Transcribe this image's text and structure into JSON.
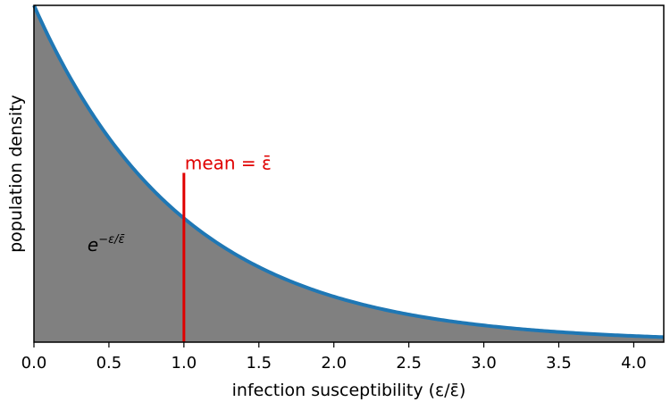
{
  "chart_data": {
    "type": "area",
    "title": "",
    "xlabel": "infection susceptibility (ε/ε̄)",
    "ylabel": "population density",
    "xlim": [
      0,
      4.2
    ],
    "ylim": [
      0,
      1.0
    ],
    "x_ticks": [
      "0.0",
      "0.5",
      "1.0",
      "1.5",
      "2.0",
      "2.5",
      "3.0",
      "3.5",
      "4.0"
    ],
    "x_tick_values": [
      0,
      0.5,
      1.0,
      1.5,
      2.0,
      2.5,
      3.0,
      3.5,
      4.0
    ],
    "y_ticks_shown": false,
    "grid": false,
    "series": [
      {
        "function": "exp(-x)",
        "x": [
          0,
          0.25,
          0.5,
          0.75,
          1.0,
          1.25,
          1.5,
          1.75,
          2.0,
          2.5,
          3.0,
          3.5,
          4.0,
          4.2
        ],
        "y": [
          1.0,
          0.779,
          0.607,
          0.472,
          0.368,
          0.287,
          0.223,
          0.174,
          0.135,
          0.082,
          0.05,
          0.03,
          0.018,
          0.015
        ],
        "line_color": "#1f77b4",
        "fill_color": "#808080"
      }
    ],
    "annotations": {
      "mean_line": {
        "x": 1.0,
        "y_top": 0.5,
        "color": "#e00000",
        "label": "mean = ε̄"
      },
      "formula": {
        "base": "e",
        "exponent": "−ε/ε̄",
        "x": 0.5,
        "y": 0.27
      }
    }
  }
}
